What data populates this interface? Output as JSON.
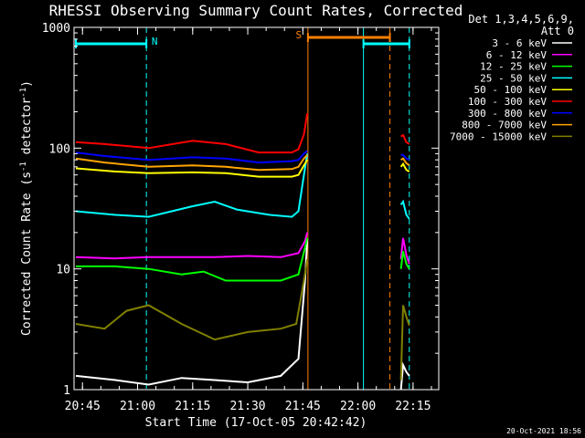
{
  "chart_data": {
    "type": "line",
    "title": "RHESSI Observing Summary Count Rates, Corrected",
    "xlabel": "Start Time (17-Oct-05 20:42:42)",
    "ylabel_main": "Corrected Count Rate (s",
    "ylabel_sup1": "-1",
    "ylabel_mid": " detector",
    "ylabel_sup2": "-1",
    "ylabel_end": ")",
    "ylog": true,
    "ylim": [
      1,
      1000
    ],
    "xlim": [
      "20:42:42",
      "22:22:00"
    ],
    "y_ticks": [
      "1",
      "10",
      "100",
      "1000"
    ],
    "x_ticks": [
      "20:45",
      "21:00",
      "21:15",
      "21:30",
      "21:45",
      "22:00",
      "22:15"
    ],
    "legend_header": [
      "Det 1,3,4,5,6,9,",
      "Att 0"
    ],
    "legend_position": "top-right, outside plot",
    "series": [
      {
        "name": "3 - 6 keV",
        "color": "#ffffff",
        "values": [
          [
            20.72,
            1.3
          ],
          [
            20.9,
            1.2
          ],
          [
            21.05,
            1.1
          ],
          [
            21.2,
            1.25
          ],
          [
            21.35,
            1.2
          ],
          [
            21.5,
            1.15
          ],
          [
            21.65,
            1.3
          ],
          [
            21.73,
            1.8
          ],
          [
            21.76,
            8
          ],
          [
            21.77,
            18
          ],
          [
            22.195,
            1.0
          ],
          [
            22.205,
            1.6
          ],
          [
            22.22,
            1.4
          ],
          [
            22.233,
            1.3
          ]
        ]
      },
      {
        "name": "6 - 12 keV",
        "color": "#ff00ff",
        "values": [
          [
            20.72,
            12.5
          ],
          [
            20.9,
            12.2
          ],
          [
            21.05,
            12.5
          ],
          [
            21.2,
            12.5
          ],
          [
            21.35,
            12.5
          ],
          [
            21.5,
            12.8
          ],
          [
            21.65,
            12.5
          ],
          [
            21.73,
            13.5
          ],
          [
            21.76,
            17
          ],
          [
            21.77,
            20
          ],
          [
            22.195,
            12
          ],
          [
            22.205,
            18
          ],
          [
            22.22,
            13
          ],
          [
            22.233,
            11
          ]
        ]
      },
      {
        "name": "12 - 25 keV",
        "color": "#00ff00",
        "values": [
          [
            20.72,
            10.5
          ],
          [
            20.9,
            10.5
          ],
          [
            21.05,
            10
          ],
          [
            21.2,
            9
          ],
          [
            21.3,
            9.5
          ],
          [
            21.4,
            8
          ],
          [
            21.55,
            8
          ],
          [
            21.65,
            8
          ],
          [
            21.73,
            9
          ],
          [
            21.76,
            15
          ],
          [
            21.77,
            18
          ],
          [
            22.195,
            10
          ],
          [
            22.205,
            14
          ],
          [
            22.22,
            11
          ],
          [
            22.233,
            10
          ]
        ]
      },
      {
        "name": "25 - 50 keV",
        "color": "#00ffff",
        "values": [
          [
            20.72,
            30
          ],
          [
            20.9,
            28
          ],
          [
            21.05,
            27
          ],
          [
            21.25,
            33
          ],
          [
            21.35,
            36
          ],
          [
            21.45,
            31
          ],
          [
            21.6,
            28
          ],
          [
            21.7,
            27
          ],
          [
            21.73,
            30
          ],
          [
            21.755,
            60
          ],
          [
            21.77,
            90
          ],
          [
            22.195,
            34
          ],
          [
            22.205,
            36
          ],
          [
            22.22,
            28
          ],
          [
            22.233,
            26
          ]
        ]
      },
      {
        "name": "50 - 100 keV",
        "color": "#ffff00",
        "values": [
          [
            20.72,
            68
          ],
          [
            20.9,
            64
          ],
          [
            21.05,
            62
          ],
          [
            21.25,
            63
          ],
          [
            21.4,
            62
          ],
          [
            21.55,
            58
          ],
          [
            21.7,
            58
          ],
          [
            21.73,
            60
          ],
          [
            21.755,
            72
          ],
          [
            21.77,
            80
          ],
          [
            22.195,
            70
          ],
          [
            22.205,
            74
          ],
          [
            22.22,
            66
          ],
          [
            22.233,
            64
          ]
        ]
      },
      {
        "name": "100 - 300 keV",
        "color": "#ff0000",
        "values": [
          [
            20.72,
            112
          ],
          [
            20.85,
            108
          ],
          [
            21.05,
            100
          ],
          [
            21.25,
            115
          ],
          [
            21.4,
            108
          ],
          [
            21.55,
            92
          ],
          [
            21.7,
            92
          ],
          [
            21.73,
            98
          ],
          [
            21.755,
            130
          ],
          [
            21.77,
            195
          ],
          [
            22.195,
            125
          ],
          [
            22.205,
            128
          ],
          [
            22.22,
            112
          ],
          [
            22.233,
            108
          ]
        ]
      },
      {
        "name": "300 - 800 keV",
        "color": "#0000ff",
        "values": [
          [
            20.72,
            92
          ],
          [
            20.85,
            86
          ],
          [
            21.05,
            80
          ],
          [
            21.25,
            84
          ],
          [
            21.4,
            82
          ],
          [
            21.55,
            76
          ],
          [
            21.7,
            78
          ],
          [
            21.73,
            80
          ],
          [
            21.755,
            90
          ],
          [
            21.77,
            95
          ],
          [
            22.195,
            88
          ],
          [
            22.205,
            88
          ],
          [
            22.22,
            82
          ],
          [
            22.233,
            80
          ]
        ]
      },
      {
        "name": "800 - 7000 keV",
        "color": "#ffa500",
        "values": [
          [
            20.72,
            82
          ],
          [
            20.85,
            76
          ],
          [
            21.05,
            70
          ],
          [
            21.25,
            72
          ],
          [
            21.4,
            70
          ],
          [
            21.55,
            66
          ],
          [
            21.7,
            67
          ],
          [
            21.73,
            70
          ],
          [
            21.755,
            82
          ],
          [
            21.77,
            88
          ],
          [
            22.195,
            80
          ],
          [
            22.205,
            82
          ],
          [
            22.22,
            75
          ],
          [
            22.233,
            72
          ]
        ]
      },
      {
        "name": "7000 - 15000 keV",
        "color": "#808000",
        "values": [
          [
            20.72,
            3.5
          ],
          [
            20.85,
            3.2
          ],
          [
            20.95,
            4.5
          ],
          [
            21.05,
            5
          ],
          [
            21.2,
            3.5
          ],
          [
            21.35,
            2.6
          ],
          [
            21.5,
            3
          ],
          [
            21.65,
            3.2
          ],
          [
            21.72,
            3.5
          ],
          [
            21.755,
            8
          ],
          [
            21.77,
            12
          ],
          [
            22.195,
            1.2
          ],
          [
            22.205,
            5
          ],
          [
            22.22,
            4
          ],
          [
            22.233,
            3.4
          ]
        ]
      }
    ],
    "intervals": [
      {
        "label": "N",
        "color": "#00ffff",
        "start": 20.72,
        "end": 21.04
      },
      {
        "label": "S",
        "color": "#ff8000",
        "start": 21.773,
        "end": 22.145
      },
      {
        "label": "",
        "color": "#00ffff",
        "start": 22.025,
        "end": 22.233
      }
    ],
    "markers": [
      {
        "time": 21.04,
        "color": "#00ffff",
        "style": "dashed"
      },
      {
        "time": 21.773,
        "color": "#ff8000",
        "style": "solid"
      },
      {
        "time": 22.025,
        "color": "#00ffff",
        "style": "solid"
      },
      {
        "time": 22.145,
        "color": "#ff8000",
        "style": "dashed"
      },
      {
        "time": 22.233,
        "color": "#00ffff",
        "style": "dashed"
      }
    ]
  },
  "footer": {
    "timestamp": "20-Oct-2021 18:56"
  }
}
